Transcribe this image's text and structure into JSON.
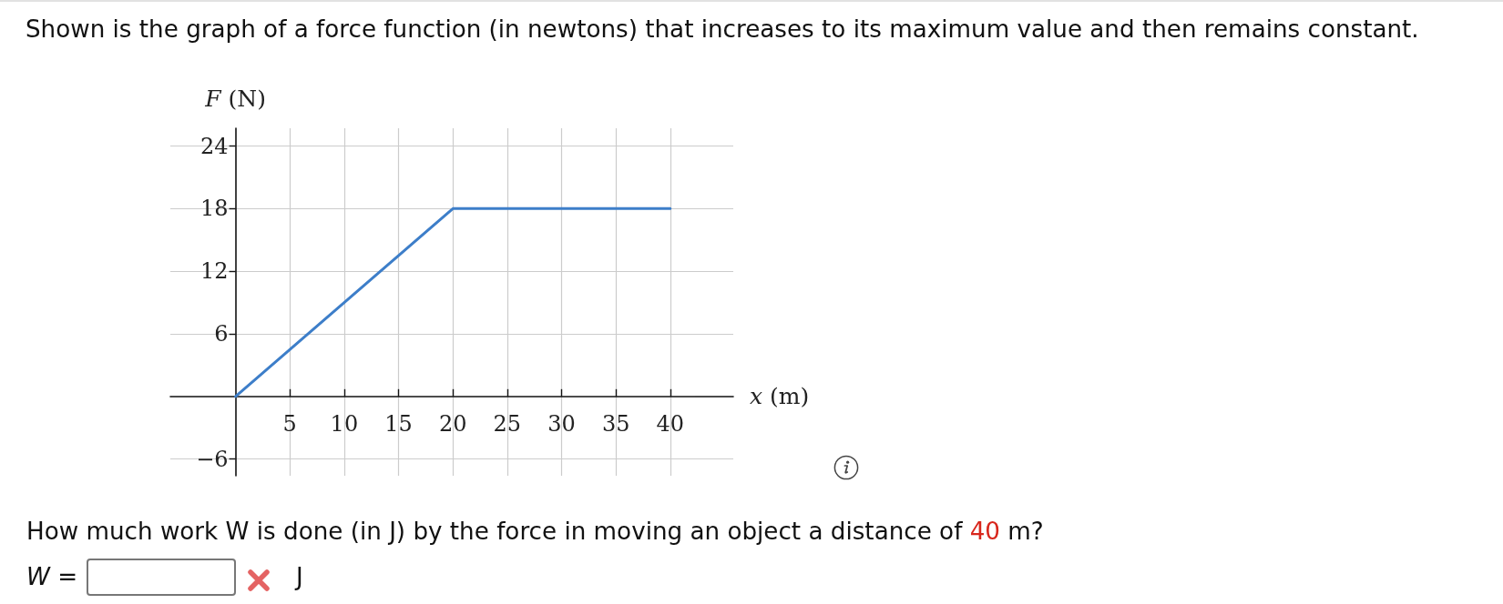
{
  "chart_data": {
    "type": "line",
    "title": "Shown is the graph of a force function (in newtons) that increases to its maximum value and then remains constant.",
    "xlabel": "x (m)",
    "ylabel": "F (N)",
    "x": [
      0,
      20,
      40
    ],
    "series": [
      {
        "color": "#3d7ec9",
        "values": [
          0,
          18,
          18
        ]
      }
    ],
    "xlim": [
      -6,
      45.8
    ],
    "ylim": [
      -7.6,
      25.7
    ],
    "xticks": [
      5,
      10,
      15,
      20,
      25,
      30,
      35,
      40
    ],
    "yticks": [
      {
        "value": -6,
        "label": "−6"
      },
      6,
      12,
      18,
      24
    ],
    "grid": true,
    "annotations": [
      "How much work W is done (in J) by the force in moving an object a distance of 40 m?",
      "W =",
      "J"
    ]
  }
}
